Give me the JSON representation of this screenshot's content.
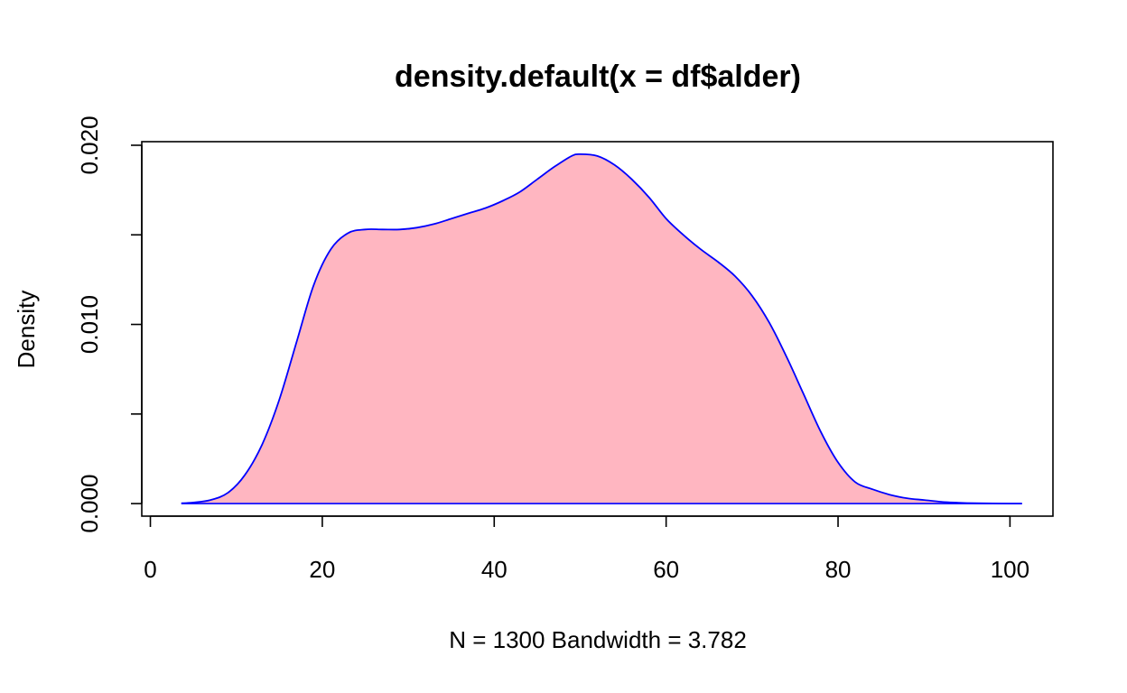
{
  "chart_data": {
    "type": "area",
    "title": "density.default(x = df$alder)",
    "xlabel": "N = 1300   Bandwidth = 3.782",
    "ylabel": "Density",
    "xlim": [
      -1,
      105
    ],
    "ylim": [
      -0.0007,
      0.0202
    ],
    "x_ticks": [
      0,
      20,
      40,
      60,
      80,
      100
    ],
    "x_tick_labels": [
      "0",
      "20",
      "40",
      "60",
      "80",
      "100"
    ],
    "y_ticks": [
      0.0,
      0.005,
      0.01,
      0.015,
      0.02
    ],
    "y_tick_labels": [
      "0.000",
      "",
      "0.010",
      "",
      "0.020"
    ],
    "grid": false,
    "fill_color": "#FFB6C1",
    "line_color": "#0000FF",
    "series": [
      {
        "x": [
          3.6,
          5,
          7,
          9,
          11,
          13,
          15,
          17,
          19,
          21,
          23,
          25,
          27,
          29,
          31,
          33,
          35,
          37,
          39,
          41,
          43,
          45,
          47,
          49,
          50,
          52,
          54,
          56,
          58,
          60,
          62,
          64,
          66,
          68,
          70,
          72,
          74,
          76,
          78,
          80,
          82,
          84,
          86,
          88,
          90,
          92,
          94,
          96,
          98,
          100,
          101.4
        ],
        "y": [
          2e-05,
          6e-05,
          0.0002,
          0.0006,
          0.0016,
          0.0033,
          0.0058,
          0.009,
          0.0122,
          0.0142,
          0.0151,
          0.0153,
          0.0153,
          0.0153,
          0.0154,
          0.0156,
          0.0159,
          0.0162,
          0.0165,
          0.0169,
          0.0174,
          0.0181,
          0.0188,
          0.0194,
          0.0195,
          0.0194,
          0.0189,
          0.0181,
          0.0171,
          0.0159,
          0.015,
          0.0142,
          0.0135,
          0.0127,
          0.0116,
          0.0101,
          0.0082,
          0.0061,
          0.004,
          0.0023,
          0.0012,
          0.0008,
          0.0005,
          0.0003,
          0.0002,
          0.0001,
          5e-05,
          2e-05,
          1e-05,
          0.0,
          0.0
        ]
      }
    ]
  }
}
